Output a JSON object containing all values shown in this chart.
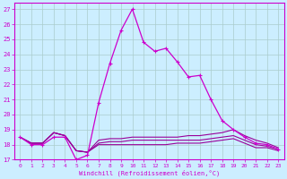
{
  "xlabel": "Windchill (Refroidissement éolien,°C)",
  "xlim": [
    -0.5,
    23.5
  ],
  "ylim": [
    17,
    27.4
  ],
  "yticks": [
    17,
    18,
    19,
    20,
    21,
    22,
    23,
    24,
    25,
    26,
    27
  ],
  "xticks": [
    0,
    1,
    2,
    3,
    4,
    5,
    6,
    7,
    8,
    9,
    10,
    11,
    12,
    13,
    14,
    15,
    16,
    17,
    18,
    19,
    20,
    21,
    22,
    23
  ],
  "background_color": "#cceeff",
  "grid_color": "#aacccc",
  "line_color_main": "#cc00cc",
  "line_color_flat": "#990099",
  "series_main": [
    18.5,
    18.0,
    18.0,
    18.5,
    18.5,
    17.0,
    17.3,
    20.8,
    23.4,
    25.6,
    27.0,
    24.8,
    24.2,
    24.4,
    23.5,
    22.5,
    22.6,
    21.0,
    19.6,
    19.0,
    18.5,
    18.1,
    18.0,
    17.7
  ],
  "series_flat1": [
    18.5,
    18.1,
    18.1,
    18.8,
    18.6,
    17.6,
    17.5,
    18.3,
    18.4,
    18.4,
    18.5,
    18.5,
    18.5,
    18.5,
    18.5,
    18.6,
    18.6,
    18.7,
    18.8,
    19.0,
    18.6,
    18.3,
    18.1,
    17.8
  ],
  "series_flat2": [
    18.5,
    18.1,
    18.1,
    18.8,
    18.6,
    17.6,
    17.5,
    18.1,
    18.2,
    18.2,
    18.3,
    18.3,
    18.3,
    18.3,
    18.3,
    18.3,
    18.3,
    18.4,
    18.5,
    18.6,
    18.3,
    18.0,
    17.9,
    17.7
  ],
  "series_flat3": [
    18.5,
    18.1,
    18.1,
    18.8,
    18.6,
    17.6,
    17.5,
    18.0,
    18.0,
    18.0,
    18.0,
    18.0,
    18.0,
    18.0,
    18.1,
    18.1,
    18.1,
    18.2,
    18.3,
    18.4,
    18.1,
    17.8,
    17.8,
    17.6
  ]
}
